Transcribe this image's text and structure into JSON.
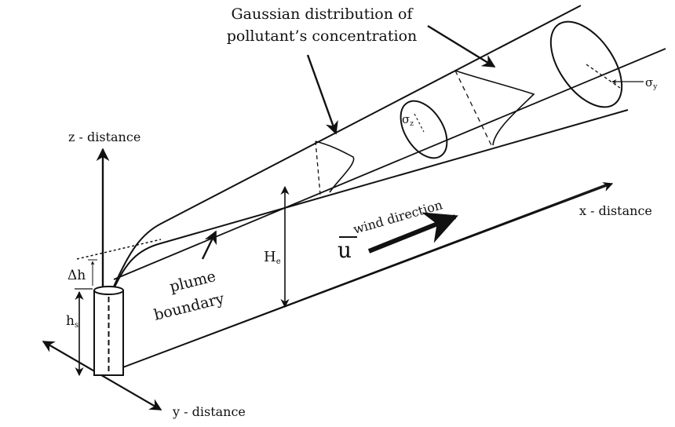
{
  "title": {
    "line1": "Gaussian distribution of",
    "line2": "pollutant’s concentration"
  },
  "axes": {
    "z": "z - distance",
    "x": "x - distance",
    "y": "y - distance"
  },
  "labels": {
    "plume_line1": "plume",
    "plume_line2": "boundary",
    "wind_direction": "wind direction",
    "u": "u",
    "sigma_z": "σ",
    "sigma_z_sub": "z",
    "sigma_y": "σ",
    "sigma_y_sub": "y",
    "H": "H",
    "H_sub": "e",
    "delta_h": "Δh",
    "h_s": "h",
    "h_s_sub": "s"
  }
}
